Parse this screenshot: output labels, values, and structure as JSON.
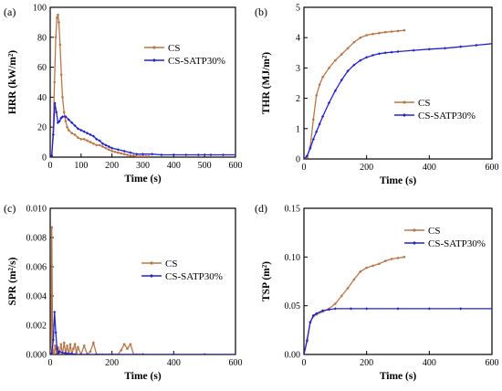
{
  "colors": {
    "cs": "#b8774a",
    "satp": "#2323c8"
  },
  "chart_data": [
    {
      "type": "line",
      "panel_label": "(a)",
      "xlabel": "Time (s)",
      "ylabel": "HRR (kW/m²)",
      "xlim": [
        0,
        600
      ],
      "ylim": [
        0,
        100
      ],
      "xticks": [
        0,
        100,
        200,
        300,
        400,
        500,
        600
      ],
      "yticks": [
        0,
        20,
        40,
        60,
        80,
        100
      ],
      "legend_position": "upper-right",
      "series": [
        {
          "name": "CS",
          "color": "#b8774a",
          "x": [
            0,
            5,
            10,
            14,
            18,
            22,
            25,
            28,
            32,
            36,
            40,
            45,
            50,
            55,
            60,
            70,
            80,
            90,
            100,
            110,
            120,
            130,
            140,
            150,
            160,
            170,
            180,
            190,
            200,
            210,
            220,
            230,
            240,
            250,
            260,
            270,
            280,
            290,
            300,
            310,
            320
          ],
          "y": [
            0,
            1,
            20,
            50,
            80,
            93,
            95,
            90,
            75,
            55,
            40,
            30,
            24,
            20,
            18,
            16,
            15,
            13,
            12,
            12,
            11,
            10,
            9,
            8,
            8,
            7,
            6,
            5,
            4,
            3.5,
            3,
            2.5,
            2,
            1.5,
            1,
            1,
            0.5,
            0.5,
            0.5,
            0.5,
            0.5
          ]
        },
        {
          "name": "CS-SATP30%",
          "color": "#2323c8",
          "x": [
            0,
            5,
            10,
            15,
            20,
            25,
            30,
            35,
            40,
            50,
            60,
            70,
            80,
            90,
            100,
            110,
            120,
            130,
            140,
            150,
            160,
            170,
            180,
            190,
            200,
            220,
            240,
            260,
            280,
            300,
            330,
            360,
            400,
            440,
            480,
            520,
            560,
            600
          ],
          "y": [
            0,
            1,
            15,
            36,
            30,
            23,
            24,
            26,
            27,
            27,
            25,
            23,
            21,
            19,
            18,
            17,
            16,
            15,
            14,
            12,
            11,
            9,
            8,
            7,
            6,
            5,
            4,
            3,
            2,
            2,
            2,
            1.5,
            1.5,
            1.5,
            1.5,
            1.5,
            1.5,
            1.5
          ]
        }
      ]
    },
    {
      "type": "line",
      "panel_label": "(b)",
      "xlabel": "Time (s)",
      "ylabel": "THR (MJ/m²)",
      "xlim": [
        0,
        600
      ],
      "ylim": [
        0,
        5
      ],
      "xticks": [
        0,
        200,
        400,
        600
      ],
      "yticks": [
        0,
        1,
        2,
        3,
        4,
        5
      ],
      "legend_position": "center-right",
      "series": [
        {
          "name": "CS",
          "color": "#b8774a",
          "x": [
            0,
            10,
            20,
            30,
            40,
            50,
            60,
            80,
            100,
            120,
            140,
            160,
            180,
            200,
            220,
            240,
            260,
            280,
            300,
            320
          ],
          "y": [
            0,
            0.05,
            0.4,
            1.3,
            2.1,
            2.45,
            2.7,
            3.0,
            3.25,
            3.45,
            3.65,
            3.85,
            4.0,
            4.08,
            4.12,
            4.15,
            4.18,
            4.2,
            4.22,
            4.24
          ]
        },
        {
          "name": "CS-SATP30%",
          "color": "#2323c8",
          "x": [
            0,
            10,
            20,
            30,
            40,
            50,
            60,
            80,
            100,
            120,
            140,
            160,
            180,
            200,
            220,
            240,
            260,
            280,
            300,
            350,
            400,
            450,
            500,
            550,
            600
          ],
          "y": [
            0,
            0.1,
            0.35,
            0.65,
            0.9,
            1.15,
            1.4,
            1.85,
            2.25,
            2.6,
            2.9,
            3.1,
            3.25,
            3.35,
            3.42,
            3.47,
            3.5,
            3.52,
            3.54,
            3.58,
            3.62,
            3.65,
            3.7,
            3.75,
            3.8
          ]
        }
      ]
    },
    {
      "type": "line",
      "panel_label": "(c)",
      "xlabel": "Time (s)",
      "ylabel": "SPR (m²/s)",
      "xlim": [
        0,
        600
      ],
      "ylim": [
        0,
        0.01
      ],
      "xticks": [
        0,
        200,
        400,
        600
      ],
      "yticks": [
        0,
        0.002,
        0.004,
        0.006,
        0.008,
        0.01
      ],
      "ytick_labels": [
        "0.000",
        "0.002",
        "0.004",
        "0.006",
        "0.008",
        "0.010"
      ],
      "legend_position": "center-right",
      "series": [
        {
          "name": "CS",
          "color": "#b8774a",
          "x": [
            0,
            3,
            5,
            8,
            12,
            16,
            20,
            25,
            30,
            35,
            40,
            45,
            50,
            55,
            60,
            65,
            70,
            75,
            80,
            85,
            90,
            100,
            110,
            120,
            130,
            140,
            150,
            160,
            170,
            180,
            190,
            200,
            210,
            220,
            230,
            240,
            250,
            260,
            270,
            280,
            290
          ],
          "y": [
            0,
            0.0003,
            0.0087,
            0.0003,
            0,
            0.0006,
            0.0001,
            0.0005,
            0,
            0.0007,
            0,
            0.0008,
            0.0001,
            0.0006,
            0,
            0.0007,
            0,
            0.0004,
            0.0007,
            0.0001,
            0.0005,
            0,
            0.0006,
            0,
            0.0002,
            0.0008,
            0,
            0,
            0,
            0,
            0,
            0,
            0,
            0,
            0.0003,
            0.0007,
            0.0004,
            0.0007,
            0,
            0,
            0
          ]
        },
        {
          "name": "CS-SATP30%",
          "color": "#2323c8",
          "x": [
            0,
            5,
            10,
            14,
            18,
            22,
            26,
            30,
            40,
            50,
            60,
            70,
            80,
            100,
            120,
            150,
            200,
            300,
            400,
            500,
            600
          ],
          "y": [
            0,
            0.0001,
            0.001,
            0.0029,
            0.0015,
            0.0004,
            0.0001,
            0.0002,
            0.0001,
            0.0001,
            5e-05,
            5e-05,
            0,
            0,
            0,
            0,
            0,
            0,
            0,
            0,
            0
          ]
        }
      ]
    },
    {
      "type": "line",
      "panel_label": "(d)",
      "xlabel": "Time (s)",
      "ylabel": "TSP (m²)",
      "xlim": [
        0,
        600
      ],
      "ylim": [
        0,
        0.15
      ],
      "xticks": [
        0,
        200,
        400,
        600
      ],
      "yticks": [
        0,
        0.05,
        0.1,
        0.15
      ],
      "ytick_labels": [
        "0.00",
        "0.05",
        "0.10",
        "0.15"
      ],
      "legend_position": "upper-right",
      "series": [
        {
          "name": "CS",
          "color": "#b8774a",
          "x": [
            0,
            10,
            20,
            30,
            40,
            60,
            80,
            100,
            120,
            140,
            160,
            180,
            200,
            220,
            240,
            260,
            280,
            300,
            320
          ],
          "y": [
            0,
            0.015,
            0.033,
            0.039,
            0.041,
            0.044,
            0.047,
            0.052,
            0.06,
            0.068,
            0.077,
            0.085,
            0.089,
            0.091,
            0.093,
            0.096,
            0.098,
            0.099,
            0.1
          ]
        },
        {
          "name": "CS-SATP30%",
          "color": "#2323c8",
          "x": [
            0,
            10,
            20,
            30,
            40,
            60,
            80,
            100,
            150,
            200,
            300,
            400,
            500,
            600
          ],
          "y": [
            0,
            0.014,
            0.033,
            0.04,
            0.042,
            0.045,
            0.046,
            0.047,
            0.047,
            0.047,
            0.047,
            0.047,
            0.047,
            0.047
          ]
        }
      ]
    }
  ]
}
